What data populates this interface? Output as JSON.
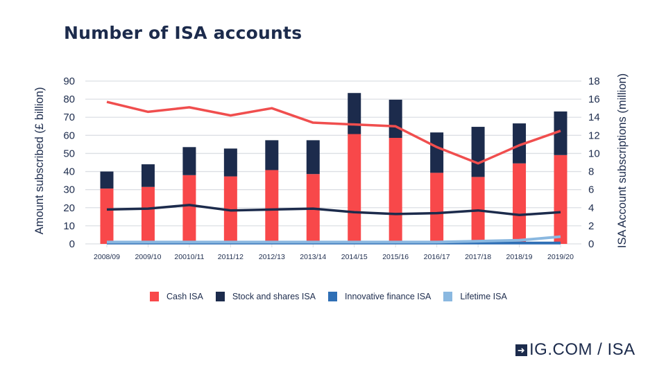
{
  "chart_data": {
    "type": "bar",
    "title": "Number of ISA accounts",
    "categories": [
      "2008/09",
      "2009/10",
      "20010/11",
      "2011/12",
      "2012/13",
      "2013/14",
      "2014/15",
      "2015/16",
      "2016/17",
      "2017/18",
      "2018/19",
      "2019/20"
    ],
    "ylabel": "Amount subscribed (£ billion)",
    "ylabel_right": "ISA Account subscriptions (million)",
    "ylim": [
      0,
      90
    ],
    "ylim_right": [
      0,
      18
    ],
    "yticks": [
      0,
      10,
      20,
      30,
      40,
      50,
      60,
      70,
      80,
      90
    ],
    "yticks_right": [
      0,
      2,
      4,
      6,
      8,
      10,
      12,
      14,
      16,
      18
    ],
    "grid": true,
    "legend_position": "bottom",
    "bar_series": [
      {
        "name": "Cash ISA",
        "color": "#f8484a",
        "values": [
          30.6,
          31.5,
          38.0,
          37.3,
          40.8,
          38.6,
          60.7,
          58.6,
          39.3,
          37.0,
          44.5,
          49.1
        ]
      },
      {
        "name": "Stock and shares ISA",
        "color": "#1c2b4c",
        "values": [
          9.4,
          12.5,
          15.5,
          15.4,
          16.5,
          18.7,
          22.7,
          21.1,
          22.3,
          27.7,
          22.1,
          24.1
        ]
      }
    ],
    "line_series": [
      {
        "name": "Cash ISA",
        "axis": "right",
        "color": "#f04e4e",
        "values": [
          15.7,
          14.6,
          15.1,
          14.2,
          15.0,
          13.4,
          13.2,
          13.0,
          10.7,
          8.9,
          10.9,
          12.5
        ]
      },
      {
        "name": "Stock and shares ISA",
        "axis": "right",
        "color": "#1c2b4c",
        "values": [
          3.8,
          3.9,
          4.3,
          3.7,
          3.8,
          3.9,
          3.5,
          3.3,
          3.4,
          3.7,
          3.2,
          3.5
        ]
      },
      {
        "name": "Innovative finance ISA",
        "axis": "right",
        "color": "#2f6fb5",
        "values": [
          0.1,
          0.1,
          0.1,
          0.1,
          0.1,
          0.1,
          0.1,
          0.1,
          0.1,
          0.1,
          0.1,
          0.1
        ]
      },
      {
        "name": "Lifetime ISA",
        "axis": "right",
        "color": "#8ab8e0",
        "values": [
          0.2,
          0.2,
          0.2,
          0.2,
          0.2,
          0.2,
          0.2,
          0.2,
          0.2,
          0.3,
          0.4,
          0.8
        ]
      }
    ],
    "legend": [
      {
        "label": "Cash ISA",
        "color": "#f8484a"
      },
      {
        "label": "Stock and shares ISA",
        "color": "#1c2b4c"
      },
      {
        "label": "Innovative finance ISA",
        "color": "#2f6fb5"
      },
      {
        "label": "Lifetime ISA",
        "color": "#8ab8e0"
      }
    ]
  },
  "brand": {
    "text": "IG.COM / ISA",
    "icon": "arrow-right-icon"
  }
}
